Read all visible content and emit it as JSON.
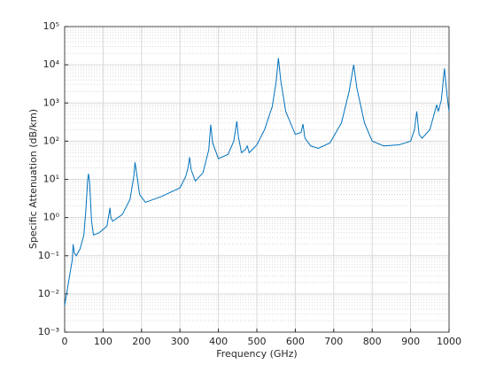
{
  "chart_data": {
    "type": "line",
    "xlabel": "Frequency (GHz)",
    "ylabel": "Specific Attenuation (dB/km)",
    "color": "#0072bd",
    "x": [
      0,
      5,
      10,
      15,
      20,
      22,
      25,
      30,
      40,
      50,
      55,
      60,
      62,
      65,
      70,
      75,
      90,
      110,
      118,
      120,
      125,
      150,
      170,
      180,
      183,
      187,
      195,
      210,
      250,
      300,
      315,
      321,
      325,
      329,
      340,
      360,
      375,
      380,
      385,
      400,
      425,
      440,
      448,
      452,
      460,
      470,
      475,
      480,
      500,
      520,
      540,
      550,
      556,
      562,
      575,
      600,
      615,
      620,
      625,
      640,
      660,
      690,
      720,
      740,
      752,
      760,
      780,
      800,
      830,
      870,
      900,
      910,
      916,
      922,
      930,
      950,
      968,
      972,
      980,
      988,
      995,
      1000
    ],
    "values": [
      0.005,
      0.01,
      0.02,
      0.04,
      0.08,
      0.2,
      0.12,
      0.1,
      0.15,
      0.35,
      1.5,
      10,
      14,
      8,
      0.8,
      0.35,
      0.4,
      0.6,
      1.8,
      1.0,
      0.8,
      1.2,
      3,
      12,
      28,
      15,
      4,
      2.5,
      3.5,
      6,
      12,
      20,
      38,
      18,
      9,
      15,
      60,
      270,
      90,
      35,
      45,
      100,
      330,
      130,
      50,
      60,
      75,
      50,
      80,
      200,
      800,
      3500,
      15000,
      4000,
      600,
      150,
      170,
      280,
      120,
      75,
      65,
      90,
      300,
      2000,
      10000,
      2500,
      300,
      100,
      75,
      80,
      100,
      200,
      600,
      150,
      120,
      200,
      900,
      600,
      1200,
      8000,
      1500,
      600
    ],
    "xlim": [
      0,
      1000
    ],
    "xticks": [
      0,
      100,
      200,
      300,
      400,
      500,
      600,
      700,
      800,
      900,
      1000
    ],
    "ylim": [
      0.001,
      100000
    ],
    "yticks": [
      {
        "value": 0.001,
        "label": "10⁻³"
      },
      {
        "value": 0.01,
        "label": "10⁻²"
      },
      {
        "value": 0.1,
        "label": "10⁻¹"
      },
      {
        "value": 1,
        "label": "10⁰"
      },
      {
        "value": 10,
        "label": "10¹"
      },
      {
        "value": 100,
        "label": "10²"
      },
      {
        "value": 1000,
        "label": "10³"
      },
      {
        "value": 10000,
        "label": "10⁴"
      },
      {
        "value": 100000,
        "label": "10⁵"
      }
    ],
    "ylog": true,
    "grid": true,
    "minor_grid": true
  }
}
